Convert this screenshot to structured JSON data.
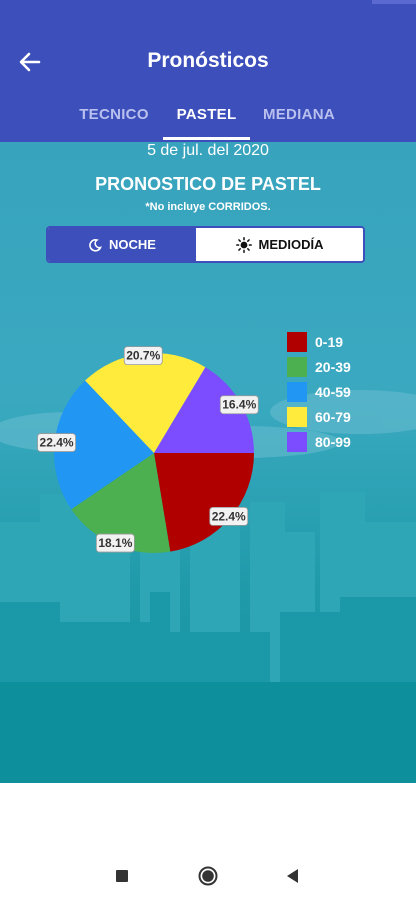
{
  "app": {
    "title": "Pronósticos",
    "back_icon": "arrow-left-icon"
  },
  "tabs": [
    {
      "label": "TECNICO",
      "active": false
    },
    {
      "label": "PASTEL",
      "active": true
    },
    {
      "label": "MEDIANA",
      "active": false
    }
  ],
  "main": {
    "date": "5 de jul. del 2020",
    "title": "PRONOSTICO DE PASTEL",
    "note": "*No incluye CORRIDOS.",
    "toggle": {
      "noche_label": "NOCHE",
      "noche_icon": "moon-icon",
      "mediodia_label": "MEDIODÍA",
      "mediodia_icon": "sun-icon",
      "selected": "NOCHE"
    }
  },
  "chart_data": {
    "type": "pie",
    "categories": [
      "0-19",
      "20-39",
      "40-59",
      "60-79",
      "80-99"
    ],
    "values": [
      22.4,
      18.1,
      22.4,
      20.7,
      16.4
    ],
    "labels": [
      "22.4%",
      "18.1%",
      "22.4%",
      "20.7%",
      "16.4%"
    ],
    "colors": [
      "#b00000",
      "#4caf50",
      "#2196f3",
      "#ffeb3b",
      "#7c4dff"
    ],
    "legend_position": "right"
  },
  "navbar": {
    "icons": [
      "square-icon",
      "circle-icon",
      "triangle-back-icon"
    ]
  },
  "colors": {
    "primary": "#3d4fba",
    "background": "#38a3bd"
  }
}
